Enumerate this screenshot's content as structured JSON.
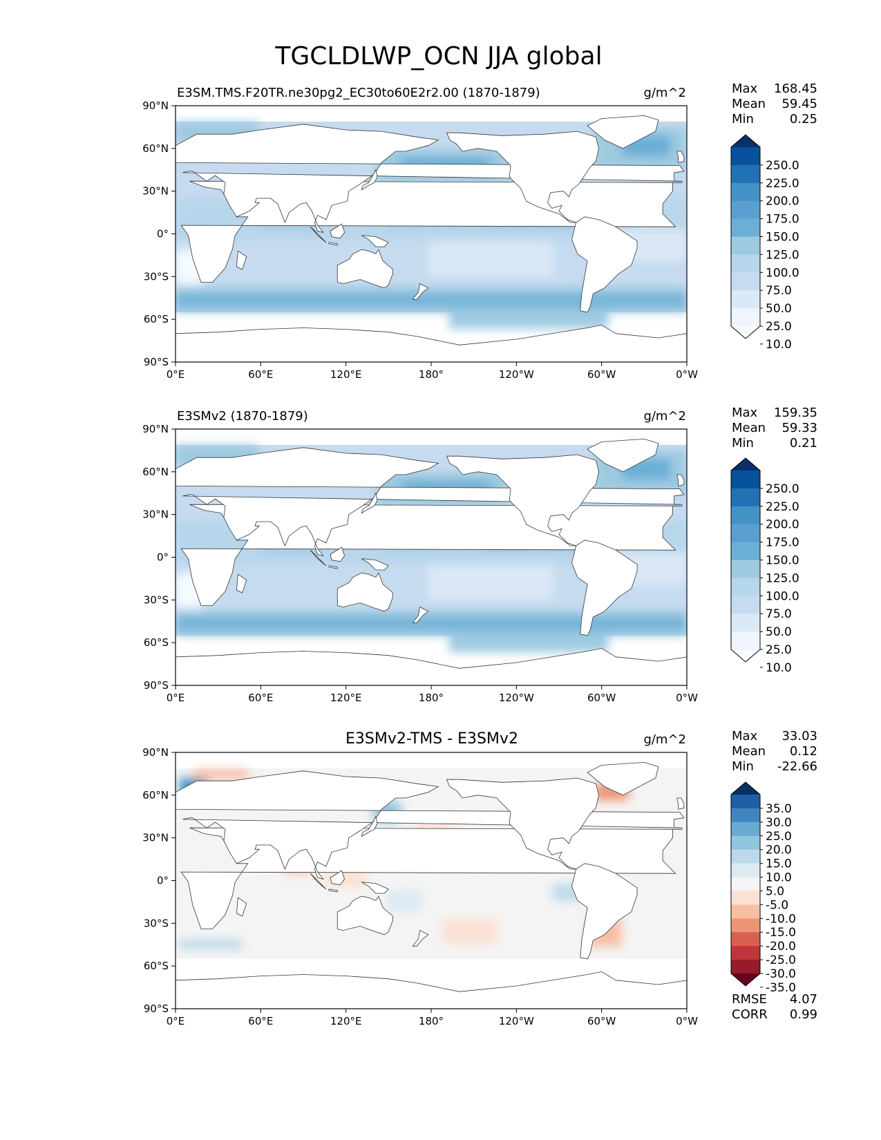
{
  "title": "TGCLDLWP_OCN JJA global",
  "chart_data": [
    {
      "type": "heatmap",
      "title": "E3SM.TMS.F20TR.ne30pg2_EC30to60E2r2.00 (1870-1879)",
      "units": "g/m^2",
      "xticks": [
        "0°E",
        "60°E",
        "120°E",
        "180°",
        "120°W",
        "60°W",
        "0°W"
      ],
      "yticks": [
        "90°N",
        "60°N",
        "30°N",
        "0°",
        "30°S",
        "60°S",
        "90°S"
      ],
      "xlim": [
        0,
        360
      ],
      "ylim": [
        -90,
        90
      ],
      "stats": [
        {
          "label": "Max",
          "value": "168.45"
        },
        {
          "label": "Mean",
          "value": "59.45"
        },
        {
          "label": "Min",
          "value": "0.25"
        }
      ],
      "colorbar": {
        "labels": [
          "250.0",
          "225.0",
          "200.0",
          "175.0",
          "150.0",
          "125.0",
          "100.0",
          "75.0",
          "50.0",
          "25.0",
          "10.0"
        ],
        "colors": [
          "#08306b",
          "#08519c",
          "#2171b5",
          "#4292c6",
          "#5a9fd0",
          "#6baed6",
          "#9ecae1",
          "#b7d6ec",
          "#c6dbef",
          "#dbe9f6",
          "#eef5fc",
          "#f7fbff"
        ]
      }
    },
    {
      "type": "heatmap",
      "title": "E3SMv2 (1870-1879)",
      "units": "g/m^2",
      "xticks": [
        "0°E",
        "60°E",
        "120°E",
        "180°",
        "120°W",
        "60°W",
        "0°W"
      ],
      "yticks": [
        "90°N",
        "60°N",
        "30°N",
        "0°",
        "30°S",
        "60°S",
        "90°S"
      ],
      "xlim": [
        0,
        360
      ],
      "ylim": [
        -90,
        90
      ],
      "stats": [
        {
          "label": "Max",
          "value": "159.35"
        },
        {
          "label": "Mean",
          "value": "59.33"
        },
        {
          "label": "Min",
          "value": "0.21"
        }
      ],
      "colorbar": {
        "labels": [
          "250.0",
          "225.0",
          "200.0",
          "175.0",
          "150.0",
          "125.0",
          "100.0",
          "75.0",
          "50.0",
          "25.0",
          "10.0"
        ],
        "colors": [
          "#08306b",
          "#08519c",
          "#2171b5",
          "#4292c6",
          "#5a9fd0",
          "#6baed6",
          "#9ecae1",
          "#b7d6ec",
          "#c6dbef",
          "#dbe9f6",
          "#eef5fc",
          "#f7fbff"
        ]
      }
    },
    {
      "type": "heatmap",
      "title": "E3SMv2-TMS - E3SMv2",
      "units": "g/m^2",
      "xticks": [
        "0°E",
        "60°E",
        "120°E",
        "180°",
        "120°W",
        "60°W",
        "0°W"
      ],
      "yticks": [
        "90°N",
        "60°N",
        "30°N",
        "0°",
        "30°S",
        "60°S",
        "90°S"
      ],
      "xlim": [
        0,
        360
      ],
      "ylim": [
        -90,
        90
      ],
      "stats": [
        {
          "label": "Max",
          "value": "33.03"
        },
        {
          "label": "Mean",
          "value": "0.12"
        },
        {
          "label": "Min",
          "value": "-22.66"
        }
      ],
      "colorbar": {
        "labels": [
          "35.0",
          "30.0",
          "25.0",
          "20.0",
          "15.0",
          "10.0",
          "5.0",
          "-5.0",
          "-10.0",
          "-15.0",
          "-20.0",
          "-25.0",
          "-30.0",
          "-35.0"
        ],
        "colors": [
          "#053061",
          "#1f5fa5",
          "#3f86c0",
          "#6aa9d2",
          "#92c5de",
          "#bcd9ea",
          "#dbeaf3",
          "#f4f4f4",
          "#fbe1d3",
          "#f6bfa4",
          "#ed9475",
          "#d9604f",
          "#c0353a",
          "#981b2a",
          "#67001f"
        ]
      },
      "metrics": [
        {
          "label": "RMSE",
          "value": "4.07"
        },
        {
          "label": "CORR",
          "value": "0.99"
        }
      ]
    }
  ]
}
